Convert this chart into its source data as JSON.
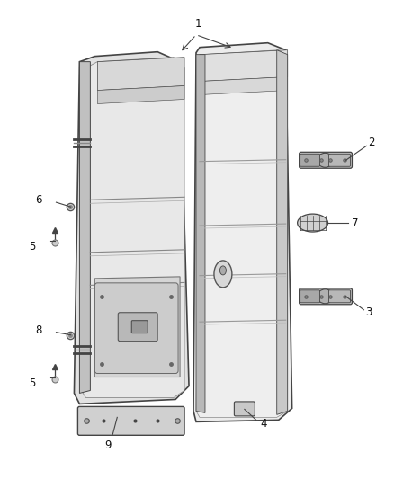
{
  "bg_color": "#ffffff",
  "fig_width": 4.38,
  "fig_height": 5.33,
  "dpi": 100,
  "line_color": "#444444",
  "fill_door_left": "#e2e2e2",
  "fill_door_right": "#ececec",
  "fill_panel": "#d0d0d0",
  "fill_plate": "#c8c8c8",
  "label_fontsize": 8.5,
  "label_color": "#111111"
}
